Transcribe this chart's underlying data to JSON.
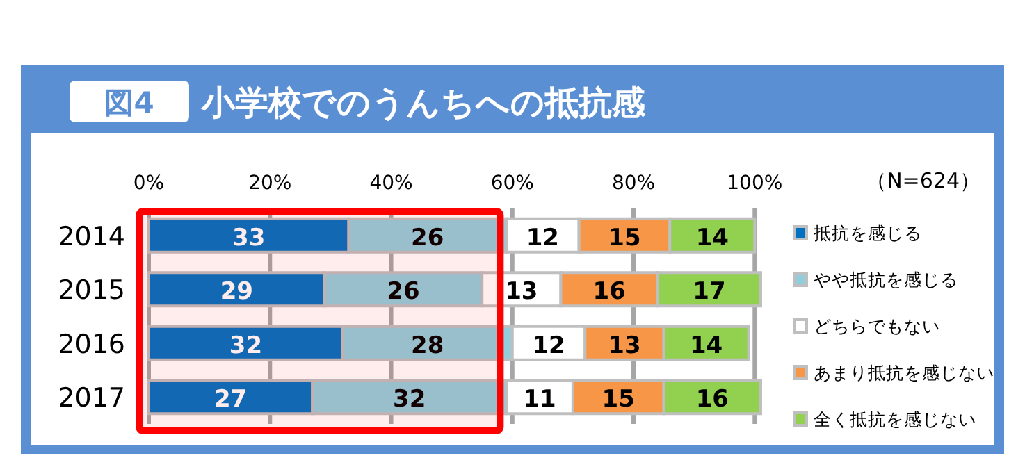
{
  "chart_data": {
    "type": "bar",
    "orientation": "horizontal",
    "stacked": true,
    "title": "小学校でのうんちへの抵抗感",
    "annotations": [
      "図4",
      "（N=624）"
    ],
    "categories": [
      "2014",
      "2015",
      "2016",
      "2017"
    ],
    "series": [
      {
        "name": "抵抗を感じる",
        "color": "#0070c0",
        "values": [
          33,
          29,
          32,
          27
        ]
      },
      {
        "name": "やや抵抗を感じる",
        "color": "#92cddc",
        "values": [
          26,
          26,
          28,
          32
        ]
      },
      {
        "name": "どちらでもない",
        "color": "#ffffff",
        "values": [
          12,
          13,
          12,
          11
        ]
      },
      {
        "name": "あまり抵抗を感じない",
        "color": "#f79646",
        "values": [
          15,
          16,
          13,
          15
        ]
      },
      {
        "name": "全く抵抗を感じない",
        "color": "#92d050",
        "values": [
          14,
          17,
          14,
          16
        ]
      }
    ],
    "xlim": [
      0,
      101
    ],
    "xticks": [
      {
        "value": 0,
        "label": "0%"
      },
      {
        "value": 20,
        "label": "20%"
      },
      {
        "value": 40,
        "label": "40%"
      },
      {
        "value": 60,
        "label": "60%"
      },
      {
        "value": 80,
        "label": "80%"
      },
      {
        "value": 100,
        "label": "100%"
      }
    ],
    "bands": [
      {
        "axis": "x",
        "from": 0,
        "to": 58,
        "color": "#ff0000"
      }
    ],
    "data_labels": true,
    "grid": "x",
    "legend": "right"
  }
}
